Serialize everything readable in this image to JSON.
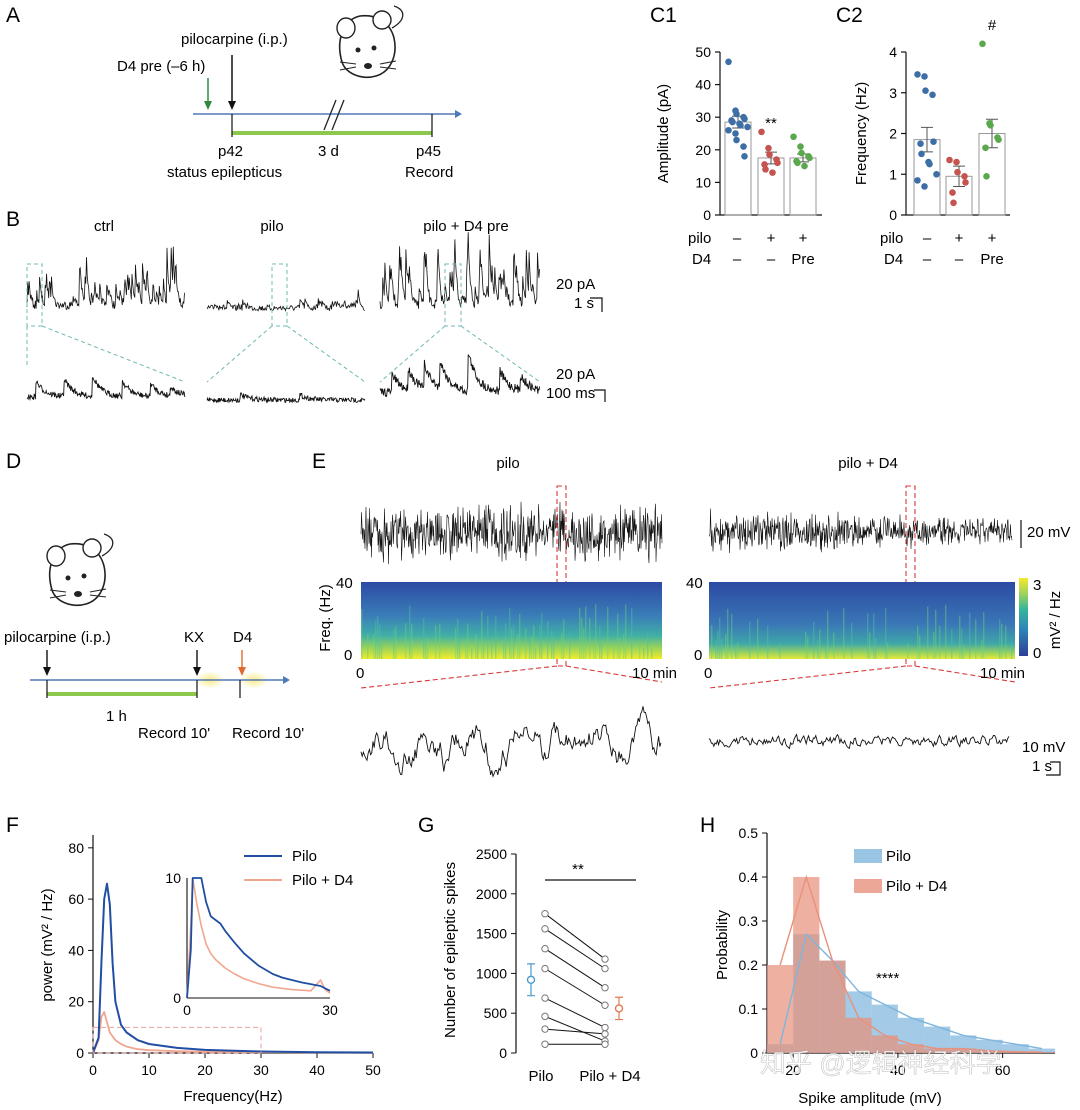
{
  "panels": {
    "A": "A",
    "B": "B",
    "C1": "C1",
    "C2": "C2",
    "D": "D",
    "E": "E",
    "F": "F",
    "G": "G",
    "H": "H"
  },
  "colors": {
    "ctrl": "#3d6fa6",
    "pilo": "#c5534f",
    "pre": "#5aa84c",
    "timeline": "#4f79b8",
    "green_bar": "#8cc84b",
    "pilo_line": "#1f4ea3",
    "d4_line": "#f0a78f",
    "dash_teal": "#6fb8b5",
    "dash_red": "#d93a3a",
    "hist_pilo": "#7fb5dc",
    "hist_d4": "#e8917c"
  },
  "panelA": {
    "drug": "pilocarpine (i.p.)",
    "pre": "D4 pre (–6 h)",
    "p42": "p42",
    "se": "status epilepticus",
    "duration": "3 d",
    "p45": "p45",
    "record": "Record"
  },
  "panelB": {
    "groups": [
      "ctrl",
      "pilo",
      "pilo + D4 pre"
    ],
    "scale_top_amp": "20 pA",
    "scale_top_time": "1 s",
    "scale_bottom_amp": "20 pA",
    "scale_bottom_time": "100 ms"
  },
  "treatment_rows": {
    "pilo_label": "pilo",
    "d4_label": "D4",
    "pilo": [
      "–",
      "+",
      "+"
    ],
    "d4": [
      "–",
      "–",
      "Pre"
    ]
  },
  "chart_data": [
    {
      "id": "C1",
      "type": "scatter",
      "ylabel": "Amplitude (pA)",
      "ylim": [
        0,
        50
      ],
      "yticks": [
        "0",
        "10",
        "20",
        "30",
        "40",
        "50"
      ],
      "groups": [
        {
          "mean": 28.5,
          "sem": 1.8,
          "color": "ctrl",
          "points": [
            47,
            32,
            31,
            30,
            29.5,
            29,
            28.5,
            28,
            27.5,
            27,
            26,
            25,
            23,
            21,
            18
          ]
        },
        {
          "mean": 17.5,
          "sem": 1.8,
          "color": "pilo",
          "points": [
            25.5,
            20.5,
            18.5,
            17,
            16,
            15.5,
            14,
            13
          ]
        },
        {
          "mean": 17.5,
          "sem": 1.2,
          "color": "pre",
          "points": [
            24,
            21,
            19,
            18,
            17.5,
            16.5,
            16,
            15
          ]
        }
      ],
      "annotations": [
        {
          "group": 1,
          "text": "**"
        }
      ]
    },
    {
      "id": "C2",
      "type": "scatter",
      "ylabel": "Frequency (Hz)",
      "ylim": [
        0,
        4
      ],
      "yticks": [
        "0",
        "1",
        "2",
        "3",
        "4"
      ],
      "groups": [
        {
          "mean": 1.85,
          "sem": 0.3,
          "color": "ctrl",
          "points": [
            3.45,
            3.4,
            3.05,
            2.95,
            1.8,
            1.75,
            1.5,
            1.3,
            1.25,
            1.0,
            0.85,
            0.7
          ]
        },
        {
          "mean": 0.95,
          "sem": 0.25,
          "color": "pilo",
          "points": [
            1.35,
            1.3,
            1.05,
            0.95,
            0.8,
            0.55,
            0.3
          ]
        },
        {
          "mean": 2.0,
          "sem": 0.35,
          "color": "pre",
          "points": [
            4.2,
            2.25,
            2.2,
            1.9,
            1.85,
            1.65,
            0.95
          ]
        }
      ],
      "annotations": [
        {
          "group": 2,
          "text": "#"
        }
      ]
    },
    {
      "id": "F",
      "type": "line",
      "xlabel": "Frequency(Hz)",
      "ylabel": "power (mV² / Hz)",
      "xlim": [
        0,
        50
      ],
      "ylim": [
        0,
        85
      ],
      "xticks": [
        "0",
        "10",
        "20",
        "30",
        "40",
        "50"
      ],
      "yticks": [
        "0",
        "20",
        "40",
        "60",
        "80"
      ],
      "series": [
        {
          "name": "Pilo",
          "color": "pilo_line",
          "x": [
            0,
            1,
            1.5,
            2,
            2.5,
            3,
            3.5,
            4,
            5,
            6,
            8,
            10,
            15,
            20,
            30,
            40,
            50
          ],
          "y": [
            0,
            6,
            35,
            60,
            66,
            58,
            35,
            20,
            11,
            8,
            5,
            3.5,
            2,
            1.2,
            0.6,
            0.3,
            0.2
          ]
        },
        {
          "name": "Pilo + D4",
          "color": "d4_line",
          "x": [
            0,
            1,
            1.5,
            2,
            2.5,
            3,
            4,
            5,
            6,
            8,
            10,
            15,
            20,
            30,
            40,
            50
          ],
          "y": [
            0,
            5,
            14,
            16,
            12,
            8,
            5,
            3.5,
            2.5,
            1.5,
            1.1,
            0.7,
            0.5,
            0.3,
            0.2,
            0.1
          ]
        }
      ],
      "inset": {
        "xlim": [
          0,
          30
        ],
        "ylim": [
          0,
          10
        ],
        "xticks": [
          "0",
          "30"
        ],
        "yticks": [
          "0",
          "10"
        ],
        "series": [
          {
            "name": "Pilo",
            "color": "pilo_line",
            "x": [
              0,
              0.8,
              1.2,
              2,
              3,
              4,
              5,
              6,
              7,
              8,
              10,
              12,
              15,
              18,
              20,
              24,
              28,
              30
            ],
            "y": [
              0,
              4,
              10,
              10,
              10,
              8,
              6.8,
              6.5,
              6.2,
              5.6,
              4.6,
              3.7,
              2.7,
              2.0,
              1.7,
              1.3,
              1.0,
              0.6
            ]
          },
          {
            "name": "Pilo + D4",
            "color": "d4_line",
            "x": [
              0,
              0.8,
              1.2,
              2,
              3,
              4,
              5,
              6,
              8,
              10,
              12,
              15,
              18,
              22,
              26,
              28,
              29,
              30
            ],
            "y": [
              0,
              6,
              10,
              8,
              6,
              4.5,
              3.7,
              3.2,
              2.5,
              2.0,
              1.6,
              1.2,
              0.9,
              0.7,
              0.6,
              1.5,
              0.7,
              0.4
            ]
          }
        ]
      }
    },
    {
      "id": "G",
      "type": "line",
      "ylabel": "Number of epileptic spikes",
      "ylim": [
        0,
        2500
      ],
      "yticks": [
        "0",
        "500",
        "1000",
        "1500",
        "2000",
        "2500"
      ],
      "categories": [
        "Pilo",
        "Pilo + D4"
      ],
      "pairs": [
        [
          1750,
          1180
        ],
        [
          1560,
          1060
        ],
        [
          1310,
          820
        ],
        [
          1060,
          600
        ],
        [
          690,
          320
        ],
        [
          460,
          150
        ],
        [
          300,
          240
        ],
        [
          110,
          110
        ]
      ],
      "means": [
        {
          "mean": 920,
          "sem": 200,
          "color": "#4a9ad0"
        },
        {
          "mean": 560,
          "sem": 140,
          "color": "#e07b50"
        }
      ],
      "annotation": "**"
    },
    {
      "id": "H",
      "type": "bar",
      "xlabel": "Spike amplitude (mV)",
      "ylabel": "Probability",
      "xlim": [
        15,
        70
      ],
      "ylim": [
        0,
        0.5
      ],
      "xticks": [
        "20",
        "40",
        "60"
      ],
      "yticks": [
        "0",
        "0.1",
        "0.2",
        "0.3",
        "0.4",
        "0.5"
      ],
      "bin_edges": [
        15,
        20,
        25,
        30,
        35,
        40,
        45,
        50,
        55,
        60,
        65,
        70
      ],
      "series": [
        {
          "name": "Pilo",
          "color": "hist_pilo",
          "values": [
            0.02,
            0.27,
            0.21,
            0.14,
            0.11,
            0.08,
            0.06,
            0.04,
            0.03,
            0.02,
            0.01
          ]
        },
        {
          "name": "Pilo + D4",
          "color": "hist_d4",
          "values": [
            0.2,
            0.4,
            0.21,
            0.08,
            0.04,
            0.02,
            0.01,
            0.01,
            0.005,
            0.003,
            0.002
          ]
        }
      ],
      "annotation": "****"
    }
  ],
  "panelD": {
    "drug": "pilocarpine (i.p.)",
    "kx": "KX",
    "d4": "D4",
    "duration": "1 h",
    "rec1": "Record 10'",
    "rec2": "Record 10'"
  },
  "panelE": {
    "group_pilo": "pilo",
    "group_d4": "pilo + D4",
    "scale_top": "20 mV",
    "freq_label": "Freq. (Hz)",
    "f_max": "40",
    "f_min": "0",
    "t0": "0",
    "t_end": "10 min",
    "cbar_max": "3",
    "cbar_min": "0",
    "cbar_label": "mV² / Hz",
    "scale_bottom_amp": "10 mV",
    "scale_bottom_time": "1 s"
  },
  "watermark": "知乎 @逻辑神经科学"
}
